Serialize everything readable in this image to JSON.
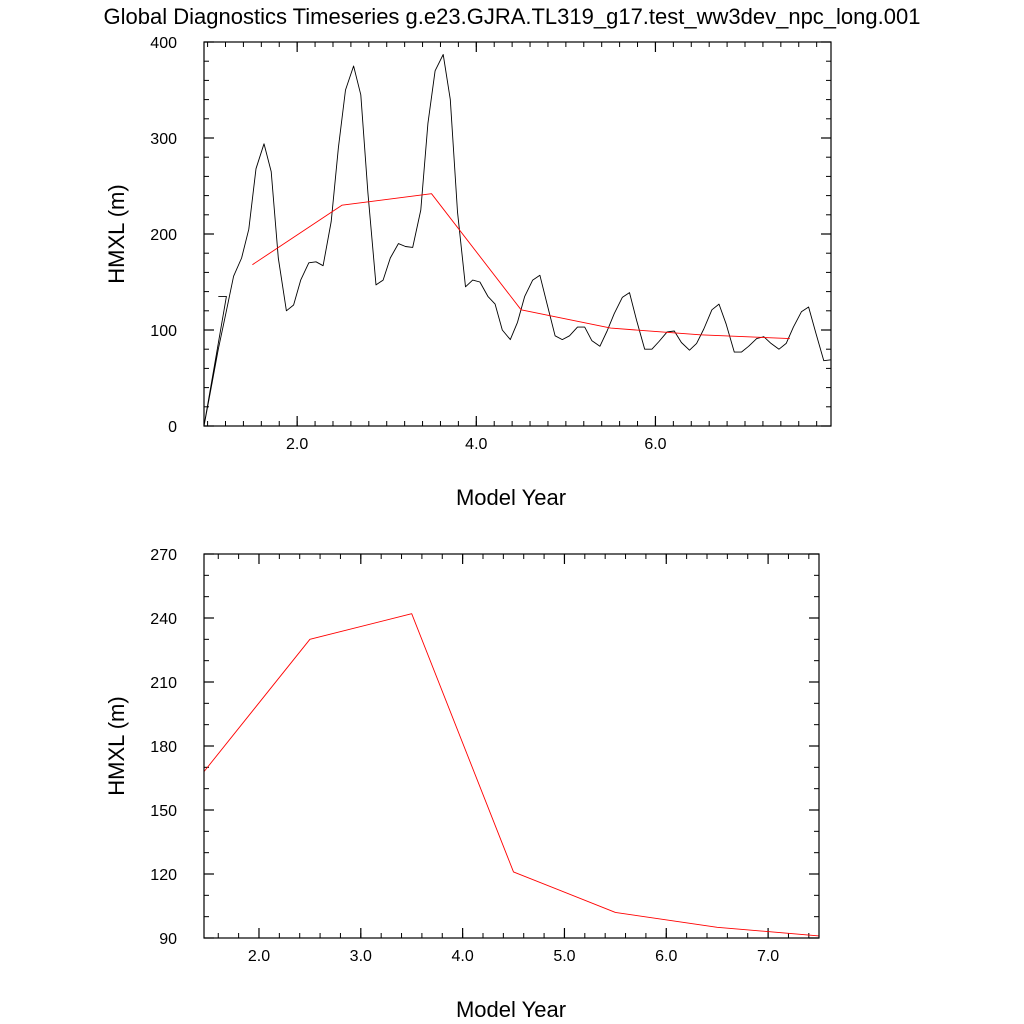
{
  "title": "Global Diagnostics Timeseries g.e23.GJRA.TL319_g17.test_ww3dev_npc_long.001",
  "colors": {
    "monthly": "#000000",
    "annual": "#ff0000",
    "frame": "#000000"
  },
  "chart_data": [
    {
      "type": "line",
      "xlabel": "Model Year",
      "ylabel": "HMXL (m)",
      "xlim": [
        0.96,
        7.96
      ],
      "ylim": [
        0,
        400
      ],
      "xticks": [
        2,
        4,
        6
      ],
      "xtick_labels": [
        "2.0",
        "4.0",
        "6.0"
      ],
      "yticks": [
        0,
        100,
        200,
        300,
        400
      ],
      "ytick_labels": [
        "0",
        "100",
        "200",
        "300",
        "400"
      ],
      "series": [
        {
          "color": "#000000",
          "points": [
            [
              1.12,
              135
            ],
            [
              1.21,
              135
            ],
            [
              0.96,
              0
            ],
            [
              1.04,
              40
            ],
            [
              1.12,
              80
            ],
            [
              1.21,
              120
            ],
            [
              1.29,
              156
            ],
            [
              1.38,
              175
            ],
            [
              1.46,
              205
            ],
            [
              1.54,
              268
            ],
            [
              1.63,
              294
            ],
            [
              1.71,
              265
            ],
            [
              1.79,
              175
            ],
            [
              1.88,
              120
            ],
            [
              1.96,
              126
            ],
            [
              2.04,
              152
            ],
            [
              2.13,
              170
            ],
            [
              2.21,
              171
            ],
            [
              2.29,
              167
            ],
            [
              2.38,
              213
            ],
            [
              2.46,
              290
            ],
            [
              2.54,
              350
            ],
            [
              2.63,
              375
            ],
            [
              2.71,
              345
            ],
            [
              2.79,
              243
            ],
            [
              2.88,
              147
            ],
            [
              2.96,
              152
            ],
            [
              3.04,
              175
            ],
            [
              3.13,
              190
            ],
            [
              3.21,
              187
            ],
            [
              3.29,
              186
            ],
            [
              3.38,
              225
            ],
            [
              3.46,
              315
            ],
            [
              3.54,
              370
            ],
            [
              3.63,
              387
            ],
            [
              3.71,
              340
            ],
            [
              3.79,
              223
            ],
            [
              3.88,
              145
            ],
            [
              3.96,
              152
            ],
            [
              4.04,
              150
            ],
            [
              4.13,
              135
            ],
            [
              4.21,
              127
            ],
            [
              4.29,
              100
            ],
            [
              4.38,
              90
            ],
            [
              4.46,
              108
            ],
            [
              4.54,
              135
            ],
            [
              4.63,
              152
            ],
            [
              4.71,
              157
            ],
            [
              4.79,
              127
            ],
            [
              4.88,
              94
            ],
            [
              4.96,
              90
            ],
            [
              5.04,
              94
            ],
            [
              5.13,
              103
            ],
            [
              5.21,
              103
            ],
            [
              5.29,
              89
            ],
            [
              5.38,
              83
            ],
            [
              5.46,
              99
            ],
            [
              5.54,
              117
            ],
            [
              5.63,
              134
            ],
            [
              5.71,
              139
            ],
            [
              5.79,
              110
            ],
            [
              5.88,
              80
            ],
            [
              5.96,
              80
            ],
            [
              6.04,
              88
            ],
            [
              6.13,
              98
            ],
            [
              6.21,
              99
            ],
            [
              6.29,
              87
            ],
            [
              6.38,
              79
            ],
            [
              6.46,
              86
            ],
            [
              6.54,
              101
            ],
            [
              6.63,
              121
            ],
            [
              6.71,
              127
            ],
            [
              6.79,
              106
            ],
            [
              6.88,
              77
            ],
            [
              6.96,
              77
            ],
            [
              7.04,
              83
            ],
            [
              7.13,
              91
            ],
            [
              7.21,
              93
            ],
            [
              7.29,
              86
            ],
            [
              7.38,
              80
            ],
            [
              7.46,
              86
            ],
            [
              7.54,
              103
            ],
            [
              7.63,
              119
            ],
            [
              7.71,
              124
            ],
            [
              7.79,
              97
            ],
            [
              7.88,
              68
            ],
            [
              7.96,
              69
            ]
          ]
        },
        {
          "color": "#ff0000",
          "points": [
            [
              1.5,
              168
            ],
            [
              2.5,
              230
            ],
            [
              3.5,
              242
            ],
            [
              4.5,
              121
            ],
            [
              5.5,
              102
            ],
            [
              6.5,
              95
            ],
            [
              7.5,
              91
            ]
          ]
        }
      ]
    },
    {
      "type": "line",
      "xlabel": "Model Year",
      "ylabel": "HMXL (m)",
      "xlim": [
        1.46,
        7.5
      ],
      "ylim": [
        90,
        270
      ],
      "xticks": [
        2,
        3,
        4,
        5,
        6,
        7
      ],
      "xtick_labels": [
        "2.0",
        "3.0",
        "4.0",
        "5.0",
        "6.0",
        "7.0"
      ],
      "yticks": [
        90,
        120,
        150,
        180,
        210,
        240,
        270
      ],
      "ytick_labels": [
        "90",
        "120",
        "150",
        "180",
        "210",
        "240",
        "270"
      ],
      "series": [
        {
          "color": "#ff0000",
          "points": [
            [
              1.46,
              168
            ],
            [
              2.5,
              230
            ],
            [
              3.5,
              242
            ],
            [
              4.5,
              121
            ],
            [
              5.5,
              102
            ],
            [
              6.5,
              95
            ],
            [
              7.5,
              91
            ]
          ]
        }
      ]
    }
  ]
}
